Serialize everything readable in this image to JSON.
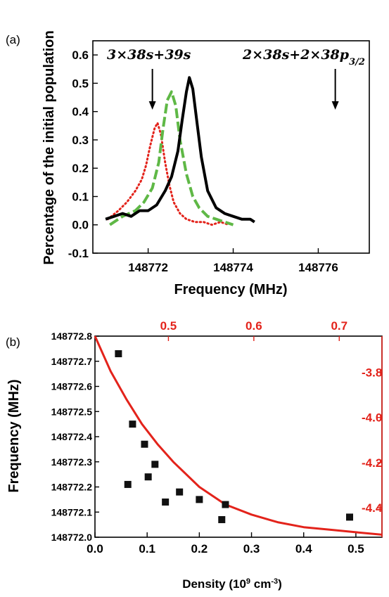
{
  "chart_data": [
    {
      "panel": "(a)",
      "type": "line",
      "xlabel": "Frequency (MHz)",
      "ylabel": "Percentage of the initial population",
      "xlim": [
        148770.7,
        148777.2
      ],
      "ylim": [
        -0.1,
        0.65
      ],
      "xticks": [
        148772,
        148774,
        148776
      ],
      "xtick_labels": [
        "148772",
        "148774",
        "148776"
      ],
      "yticks": [
        -0.1,
        0.0,
        0.1,
        0.2,
        0.3,
        0.4,
        0.5,
        0.6
      ],
      "ytick_labels": [
        "-0.1",
        "0.0",
        "0.1",
        "0.2",
        "0.3",
        "0.4",
        "0.5",
        "0.6"
      ],
      "annotations": [
        {
          "text": "3×38s+39s",
          "arrow_x": 148772.1
        },
        {
          "text": "2×38s+2×38p",
          "subscript": "3/2",
          "arrow_x": 148776.4
        }
      ],
      "series": [
        {
          "color": "#e3231b",
          "style": "dotted",
          "x": [
            148771.05,
            148771.3,
            148771.5,
            148771.7,
            148771.85,
            148771.95,
            148772.05,
            148772.15,
            148772.22,
            148772.3,
            148772.4,
            148772.5,
            148772.6,
            148772.75,
            148772.9,
            148773.1,
            148773.3,
            148773.5,
            148773.7,
            148773.9
          ],
          "y": [
            0.02,
            0.05,
            0.08,
            0.12,
            0.16,
            0.21,
            0.28,
            0.34,
            0.36,
            0.32,
            0.22,
            0.14,
            0.08,
            0.04,
            0.02,
            0.01,
            0.01,
            0.0,
            0.01,
            0.0
          ]
        },
        {
          "color": "#5fb846",
          "style": "dashed",
          "x": [
            148771.1,
            148771.4,
            148771.7,
            148771.9,
            148772.1,
            148772.25,
            148772.35,
            148772.45,
            148772.55,
            148772.65,
            148772.75,
            148772.9,
            148773.05,
            148773.2,
            148773.4,
            148773.6,
            148773.8,
            148774.0
          ],
          "y": [
            0.0,
            0.03,
            0.05,
            0.08,
            0.13,
            0.22,
            0.34,
            0.44,
            0.47,
            0.42,
            0.3,
            0.18,
            0.1,
            0.06,
            0.03,
            0.02,
            0.01,
            0.0
          ]
        },
        {
          "color": "#000000",
          "style": "solid",
          "x": [
            148771.0,
            148771.2,
            148771.4,
            148771.6,
            148771.8,
            148772.0,
            148772.2,
            148772.4,
            148772.55,
            148772.7,
            148772.8,
            148772.9,
            148772.97,
            148773.05,
            148773.15,
            148773.25,
            148773.4,
            148773.6,
            148773.8,
            148774.0,
            148774.2,
            148774.4,
            148774.5
          ],
          "y": [
            0.02,
            0.03,
            0.04,
            0.03,
            0.05,
            0.05,
            0.07,
            0.12,
            0.17,
            0.26,
            0.37,
            0.47,
            0.52,
            0.48,
            0.36,
            0.24,
            0.12,
            0.06,
            0.04,
            0.03,
            0.02,
            0.02,
            0.01
          ]
        }
      ]
    },
    {
      "panel": "(b)",
      "type": "scatter",
      "xlabel": "Density (10",
      "xlabel_sup1": "9",
      "xlabel_mid": " cm",
      "xlabel_sup2": "-3",
      "xlabel_end": ")",
      "ylabel": "Frequency (MHz)",
      "xlim": [
        0.0,
        0.55
      ],
      "ylim": [
        148772.0,
        148772.8
      ],
      "xticks": [
        0.0,
        0.1,
        0.2,
        0.3,
        0.4,
        0.5
      ],
      "xtick_labels": [
        "0.0",
        "0.1",
        "0.2",
        "0.3",
        "0.4",
        "0.5"
      ],
      "yticks": [
        148772.0,
        148772.1,
        148772.2,
        148772.3,
        148772.4,
        148772.5,
        148772.6,
        148772.7,
        148772.8
      ],
      "ytick_labels": [
        "148772.0",
        "148772.1",
        "148772.2",
        "148772.3",
        "148772.4",
        "148772.5",
        "148772.6",
        "148772.7",
        "148772.8"
      ],
      "top_xlim": [
        0.414,
        0.75
      ],
      "top_xticks": [
        0.5,
        0.6,
        0.7
      ],
      "top_xtick_labels": [
        "0.5",
        "0.6",
        "0.7"
      ],
      "right_ylim": [
        -4.53,
        -3.64
      ],
      "right_yticks": [
        -3.8,
        -4.0,
        -4.2,
        -4.4
      ],
      "right_ytick_labels": [
        "-3.8",
        "-4.0",
        "-4.2",
        "-4.4"
      ],
      "points": {
        "x": [
          0.045,
          0.063,
          0.072,
          0.095,
          0.102,
          0.115,
          0.135,
          0.162,
          0.2,
          0.243,
          0.25,
          0.488
        ],
        "y": [
          148772.73,
          148772.21,
          148772.45,
          148772.37,
          148772.24,
          148772.29,
          148772.14,
          148772.18,
          148772.15,
          148772.07,
          148772.13,
          148772.08
        ]
      },
      "curve": {
        "color": "#e3231b",
        "x": [
          0.0,
          0.03,
          0.06,
          0.09,
          0.12,
          0.15,
          0.2,
          0.25,
          0.3,
          0.35,
          0.4,
          0.45,
          0.5,
          0.55
        ],
        "y": [
          148772.8,
          148772.66,
          148772.55,
          148772.45,
          148772.37,
          148772.3,
          148772.2,
          148772.13,
          148772.09,
          148772.06,
          148772.04,
          148772.03,
          148772.02,
          148772.01
        ]
      }
    }
  ]
}
